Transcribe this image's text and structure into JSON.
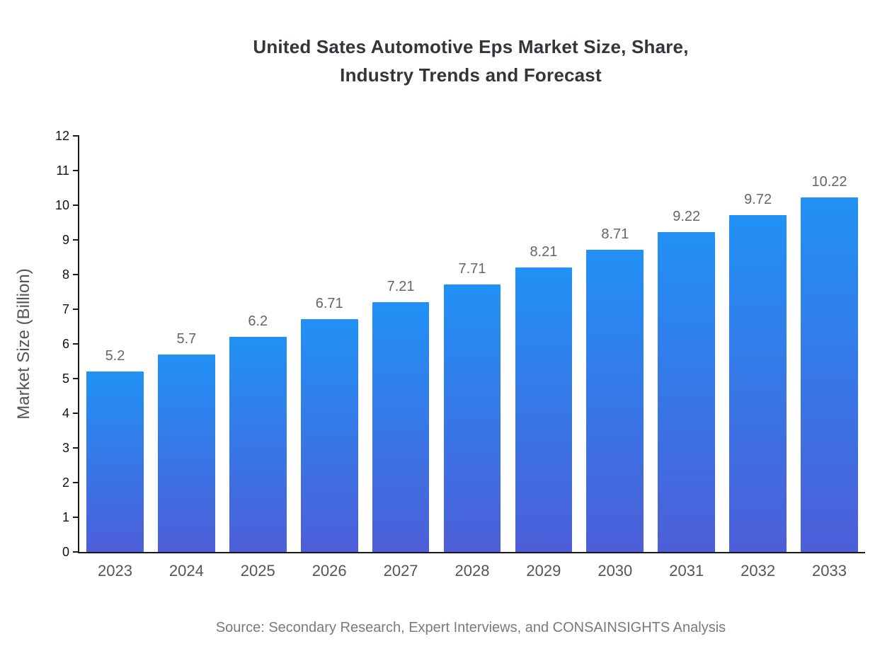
{
  "chart_data": {
    "type": "bar",
    "title": "United Sates Automotive Eps Market Size, Share, Industry Trends and Forecast",
    "title_lines": [
      "United Sates Automotive Eps Market Size, Share,",
      "Industry Trends and Forecast"
    ],
    "categories": [
      "2023",
      "2024",
      "2025",
      "2026",
      "2027",
      "2028",
      "2029",
      "2030",
      "2031",
      "2032",
      "2033"
    ],
    "values": [
      5.2,
      5.7,
      6.2,
      6.71,
      7.21,
      7.71,
      8.21,
      8.71,
      9.22,
      9.72,
      10.22
    ],
    "value_labels": [
      "5.2",
      "5.7",
      "6.2",
      "6.71",
      "7.21",
      "7.71",
      "8.21",
      "8.71",
      "9.22",
      "9.72",
      "10.22"
    ],
    "xlabel": "",
    "ylabel": "Market Size (Billion)",
    "ylim": [
      0,
      12
    ],
    "ytick_step": 1,
    "grid": false,
    "legend": "none",
    "bar_gradient_top": "#2191f5",
    "bar_gradient_bottom": "#4d5ed8",
    "axis_color": "#1a1a1a",
    "value_label_color": "#666666",
    "xtick_color": "#555555",
    "ytick_color": "#111111",
    "title_color": "#32353b",
    "source": "Source: Secondary Research, Expert Interviews, and CONSAINSIGHTS Analysis"
  }
}
